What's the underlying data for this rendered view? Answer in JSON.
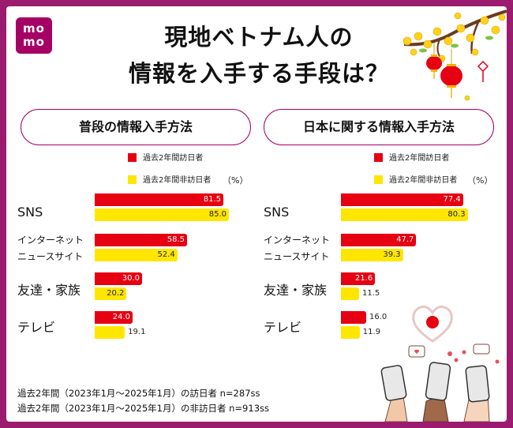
{
  "logo": {
    "line1": "mo",
    "line2": "mo"
  },
  "title": {
    "line1": "現地ベトナム人の",
    "line2": "情報を入手する手段は？"
  },
  "colors": {
    "visitor": "#e60012",
    "non_visitor": "#ffe600",
    "brand": "#a50064"
  },
  "legend": {
    "visitor": "過去2年間訪日者",
    "non_visitor": "過去2年間非訪日者",
    "unit": "（%）"
  },
  "chart_data": [
    {
      "type": "bar",
      "title": "普段の情報入手方法",
      "categories": [
        "SNS",
        "インターネット\nニュースサイト",
        "友達・家族",
        "テレビ"
      ],
      "series": [
        {
          "name": "過去2年間訪日者",
          "values": [
            81.5,
            58.5,
            30.0,
            24.0
          ]
        },
        {
          "name": "過去2年間非訪日者",
          "values": [
            85.0,
            52.4,
            20.2,
            19.1
          ]
        }
      ],
      "xlabel": "",
      "ylabel": "",
      "unit": "%",
      "orientation": "horizontal",
      "xlim": [
        0,
        100
      ]
    },
    {
      "type": "bar",
      "title": "日本に関する情報入手方法",
      "categories": [
        "SNS",
        "インターネット\nニュースサイト",
        "友達・家族",
        "テレビ"
      ],
      "series": [
        {
          "name": "過去2年間訪日者",
          "values": [
            77.4,
            47.7,
            21.6,
            16.0
          ]
        },
        {
          "name": "過去2年間非訪日者",
          "values": [
            80.3,
            39.3,
            11.5,
            11.9
          ]
        }
      ],
      "xlabel": "",
      "ylabel": "",
      "unit": "%",
      "orientation": "horizontal",
      "xlim": [
        0,
        100
      ]
    }
  ],
  "category_labels": [
    {
      "line1": "SNS",
      "line2": ""
    },
    {
      "line1": "インターネット",
      "line2": "ニュースサイト"
    },
    {
      "line1": "友達・家族",
      "line2": ""
    },
    {
      "line1": "テレビ",
      "line2": ""
    }
  ],
  "footnotes": [
    "過去2年間（2023年1月～2025年1月）の訪日者 n=287ss",
    "過去2年間（2023年1月～2025年1月）の非訪日者 n=913ss"
  ],
  "decorations": [
    "apricot-blossom-branch",
    "red-lanterns",
    "japan-flag-heart",
    "hands-with-phones"
  ]
}
